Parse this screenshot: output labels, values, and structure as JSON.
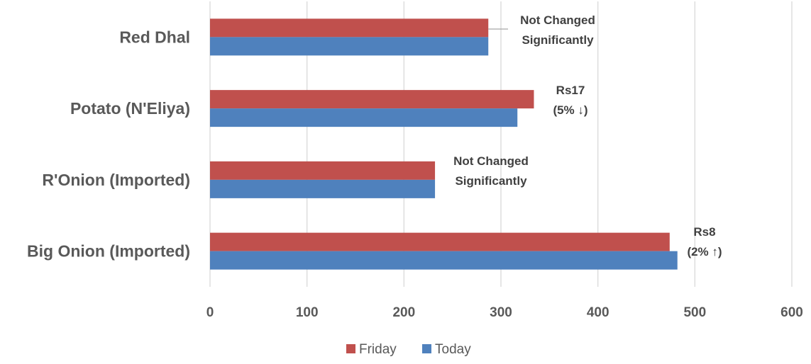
{
  "chart_data": {
    "type": "bar",
    "orientation": "horizontal",
    "title": "",
    "xlabel": "",
    "ylabel": "",
    "categories": [
      "Red Dhal",
      "Potato    (N'Eliya)",
      "R'Onion (Imported)",
      "Big Onion (Imported)"
    ],
    "series": [
      {
        "name": "Friday",
        "color": "#c0504d",
        "values": [
          287,
          334,
          232,
          474
        ]
      },
      {
        "name": "Today",
        "color": "#4f81bd",
        "values": [
          287,
          317,
          232,
          482
        ]
      }
    ],
    "xlim": [
      0,
      600
    ],
    "xticks": [
      "0",
      "100",
      "200",
      "300",
      "400",
      "500",
      "600"
    ],
    "grid": true,
    "gridline_color": "#d9d9d9",
    "legend_position": "bottom",
    "annotations": [
      {
        "category": "Red Dhal",
        "lines": [
          "Not Changed",
          "Significantly"
        ],
        "leader_line": true
      },
      {
        "category": "Potato    (N'Eliya)",
        "lines": [
          "Rs17",
          "(5% ↓)"
        ]
      },
      {
        "category": "R'Onion (Imported)",
        "lines": [
          "Not Changed",
          "Significantly"
        ]
      },
      {
        "category": "Big Onion (Imported)",
        "lines": [
          "Rs8",
          "(2% ↑)"
        ]
      }
    ]
  }
}
